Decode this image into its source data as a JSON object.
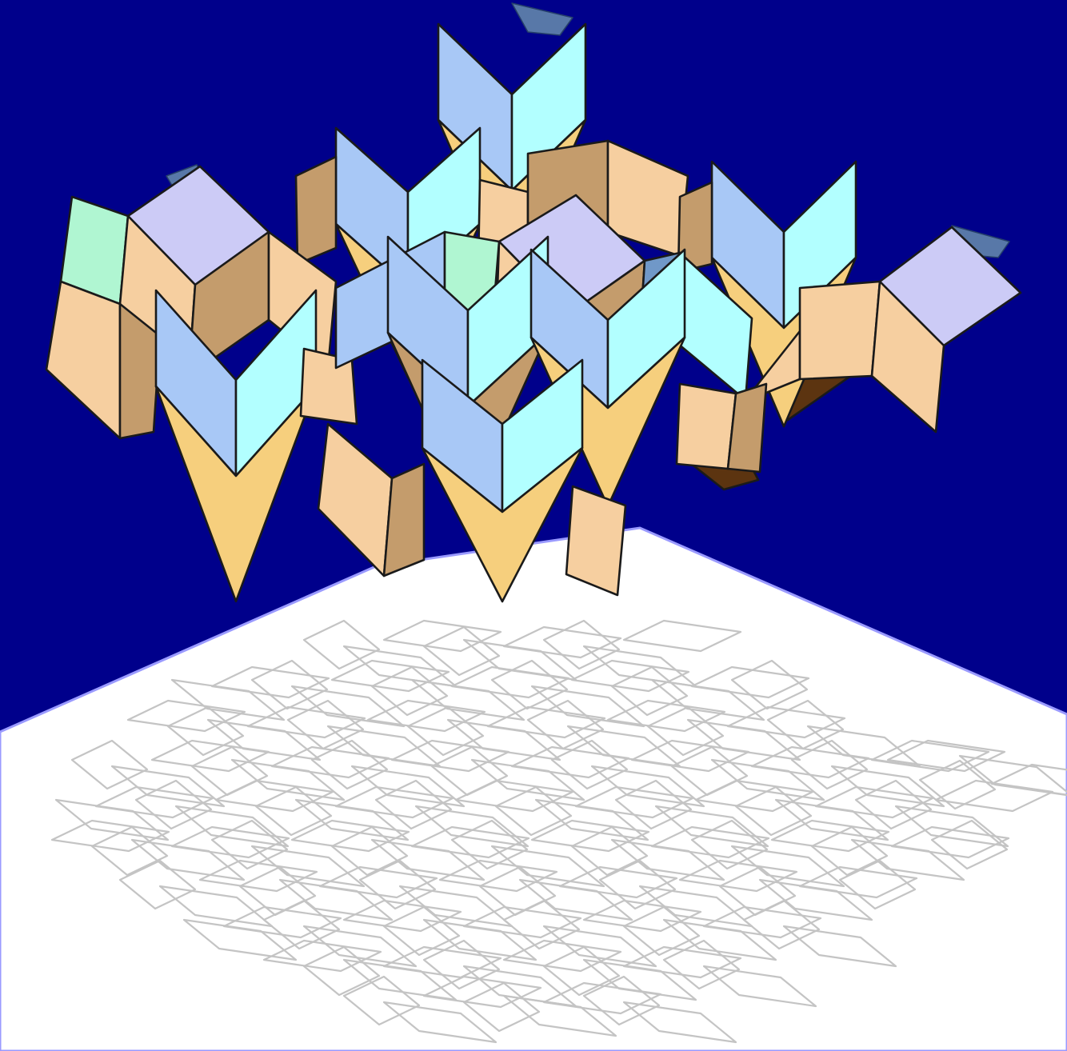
{
  "scene": {
    "background_color": "#00008b",
    "floor_color": "#ffffff",
    "floor_edge_color": "#9a9aff",
    "shadow_line_color": "#c4c4c4",
    "edge_color": "#1a1a1a"
  },
  "face_colors": {
    "top": "#f6cf7d",
    "left": "#a8c8f6",
    "right": "#b2ffff",
    "side_tan": "#f6cfa0",
    "side_dark": "#c49c6c",
    "lavender": "#cccbf6",
    "mint": "#b0f6d2",
    "steel": "#7098c8",
    "fin": "#5878a8",
    "brown": "#5c3410"
  },
  "icons": {
    "structure": "rhombic-tiling-3d",
    "shadow": "penrose-rhombus-tiling-shadow"
  }
}
